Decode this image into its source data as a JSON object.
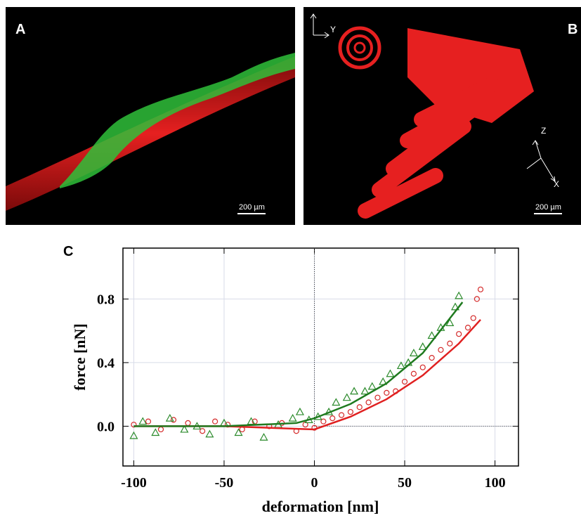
{
  "panels": {
    "a": {
      "label": "A",
      "scale": "200 µm"
    },
    "b": {
      "label": "B",
      "scale": "200 µm",
      "axes": [
        "Y",
        "Z",
        "X"
      ]
    },
    "c": {
      "label": "C"
    }
  },
  "chart_data": {
    "type": "scatter",
    "x_label": "deformation [nm]",
    "y_label": "force [nN]",
    "xlim": [
      -106,
      113
    ],
    "ylim": [
      -0.25,
      1.12
    ],
    "xticks": [
      -100,
      -50,
      0,
      50,
      100
    ],
    "yticks": [
      {
        "value": 0,
        "label": "0.0"
      },
      0.4,
      0.8
    ],
    "grid": true,
    "reflines": {
      "x": 0,
      "y": 0
    },
    "series": [
      {
        "color": "#d42a2a",
        "marker": "circle",
        "x": [
          -100,
          -92,
          -85,
          -78,
          -70,
          -62,
          -55,
          -48,
          -40,
          -33,
          -25,
          -18,
          -10,
          -5,
          0,
          5,
          10,
          15,
          20,
          25,
          30,
          35,
          40,
          45,
          50,
          55,
          60,
          65,
          70,
          75,
          80,
          85,
          88,
          90,
          92
        ],
        "values": [
          0.01,
          0.03,
          -0.02,
          0.04,
          0.02,
          -0.03,
          0.03,
          0.01,
          -0.02,
          0.03,
          0.0,
          0.02,
          -0.03,
          0.01,
          -0.01,
          0.03,
          0.05,
          0.07,
          0.09,
          0.12,
          0.15,
          0.18,
          0.21,
          0.22,
          0.28,
          0.33,
          0.37,
          0.43,
          0.48,
          0.52,
          0.58,
          0.62,
          0.68,
          0.8,
          0.86
        ]
      },
      {
        "color": "#2b8a2b",
        "marker": "triangle",
        "x": [
          -100,
          -95,
          -88,
          -80,
          -72,
          -65,
          -58,
          -50,
          -42,
          -35,
          -28,
          -20,
          -12,
          -8,
          -3,
          2,
          8,
          12,
          18,
          22,
          28,
          32,
          38,
          42,
          48,
          52,
          55,
          60,
          65,
          70,
          75,
          78,
          80
        ],
        "values": [
          -0.06,
          0.03,
          -0.04,
          0.05,
          -0.02,
          0.0,
          -0.05,
          0.02,
          -0.04,
          0.03,
          -0.07,
          0.01,
          0.05,
          0.09,
          0.04,
          0.06,
          0.09,
          0.15,
          0.18,
          0.22,
          0.22,
          0.25,
          0.28,
          0.33,
          0.38,
          0.4,
          0.46,
          0.5,
          0.57,
          0.62,
          0.65,
          0.75,
          0.82
        ]
      }
    ],
    "fits": [
      {
        "color": "#e02020",
        "x": [
          -100,
          -50,
          0,
          20,
          40,
          60,
          80,
          92
        ],
        "values": [
          0.0,
          0.0,
          -0.02,
          0.06,
          0.17,
          0.32,
          0.52,
          0.67
        ]
      },
      {
        "color": "#1f7a1f",
        "x": [
          -100,
          -50,
          -10,
          0,
          20,
          40,
          60,
          82
        ],
        "values": [
          0.0,
          0.0,
          0.02,
          0.05,
          0.14,
          0.27,
          0.46,
          0.78
        ]
      }
    ]
  }
}
